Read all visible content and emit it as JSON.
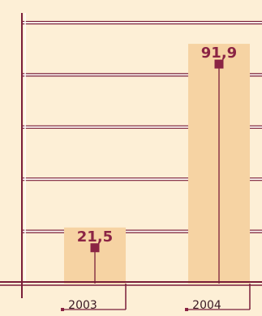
{
  "chart_data": {
    "type": "bar",
    "categories": [
      "2003",
      "2004"
    ],
    "values": [
      21.5,
      91.9
    ],
    "value_labels": [
      "21,5",
      "91,9"
    ],
    "title": "",
    "xlabel": "",
    "ylabel": "",
    "ylim": [
      0,
      100
    ],
    "grid": true,
    "legend": "none"
  },
  "colors": {
    "background": "#fdefd6",
    "bar": "#f6d3a3",
    "axis": "#7a1e3a",
    "gridline_white": "#ffffff",
    "marker": "#8b2444",
    "label": "#8b2444"
  }
}
